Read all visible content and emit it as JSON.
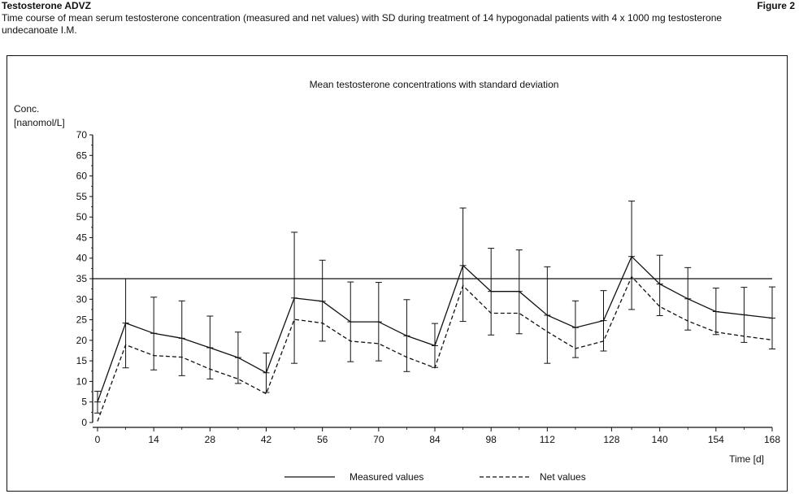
{
  "header": {
    "document_title": "Testosterone ADVZ",
    "figure_label": "Figure 2",
    "caption": "Time course of mean serum testosterone concentration (measured and net values) with SD during treatment of 14 hypogonadal patients with 4 x 1000 mg testosterone undecanoate I.M."
  },
  "chart_data": {
    "type": "line",
    "title": "Mean testosterone concentrations with standard deviation",
    "ylabel_line1": "Conc.",
    "ylabel_line2": "[nanomol/L]",
    "xlabel": "Time [d]",
    "xlim": [
      0,
      168
    ],
    "ylim": [
      0,
      70
    ],
    "xticks": [
      0,
      14,
      28,
      42,
      56,
      70,
      84,
      98,
      112,
      128,
      140,
      154,
      168
    ],
    "yticks": [
      0,
      5,
      10,
      15,
      20,
      25,
      30,
      35,
      40,
      45,
      50,
      55,
      60,
      65,
      70
    ],
    "reference_line": 35,
    "legend_position": "bottom",
    "colors": {
      "lines": "#111111"
    },
    "x": [
      0,
      7,
      14,
      21,
      28,
      35,
      42,
      49,
      56,
      63,
      70,
      77,
      84,
      91,
      98,
      105,
      112,
      119,
      126,
      133,
      140,
      147,
      154,
      161,
      168
    ],
    "series": [
      {
        "name": "Measured values",
        "style": "solid",
        "values": [
          5,
          24.2,
          21.7,
          20.5,
          18.2,
          15.8,
          12.1,
          30.3,
          29.5,
          24.5,
          24.5,
          21.1,
          18.7,
          38.2,
          31.9,
          31.9,
          26.1,
          23.1,
          24.8,
          40.4,
          33.7,
          30.1,
          27.0,
          26.2,
          25.4
        ],
        "sd_low": [
          2.3,
          13.3,
          12.8,
          11.4,
          10.6,
          9.5,
          7.3,
          14.4,
          19.8,
          14.8,
          15.0,
          12.4,
          13.4,
          24.6,
          21.3,
          21.6,
          14.4,
          15.8,
          17.4,
          27.5,
          26.0,
          22.5,
          21.4,
          19.5,
          17.9
        ],
        "sd_high": [
          7.6,
          35.0,
          30.5,
          29.6,
          25.9,
          22.0,
          16.9,
          46.3,
          39.5,
          34.2,
          34.1,
          29.9,
          24.1,
          52.2,
          42.4,
          42.0,
          37.9,
          29.6,
          32.1,
          53.9,
          40.7,
          37.7,
          32.7,
          32.9,
          33.0
        ]
      },
      {
        "name": "Net values",
        "style": "dashed",
        "values": [
          0.3,
          18.9,
          16.3,
          15.9,
          13.0,
          10.6,
          7.0,
          25.1,
          24.2,
          19.8,
          19.2,
          15.9,
          13.3,
          33.3,
          26.6,
          26.6,
          22.1,
          18.0,
          19.8,
          35.5,
          28.2,
          24.7,
          22.0,
          21.0,
          20.1
        ]
      }
    ]
  }
}
